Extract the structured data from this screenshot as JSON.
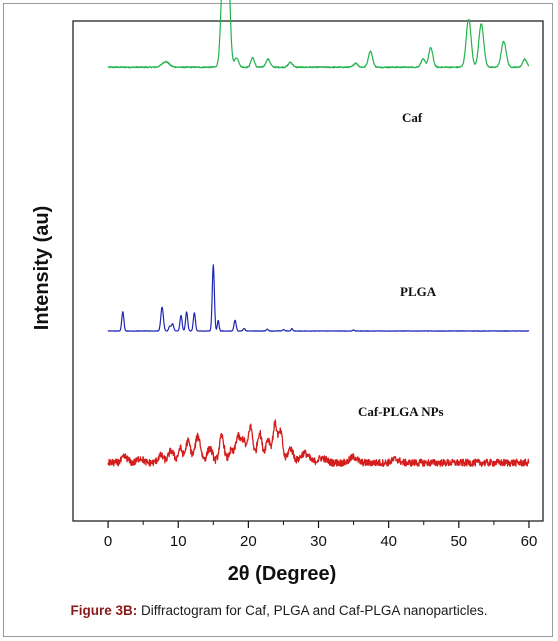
{
  "figure": {
    "caption_label": "Figure 3B:",
    "caption_text": " Diffractogram for Caf, PLGA and Caf-PLGA nanoparticles."
  },
  "colors": {
    "caf": "#22b24c",
    "plga": "#1f27b5",
    "caf_plga": "#d41e1e",
    "axis": "#111111"
  },
  "chart_data": {
    "type": "line",
    "xlabel": "2θ (Degree)",
    "ylabel": "Intensity (au)",
    "xlim": [
      -5,
      62
    ],
    "xticks": [
      "0",
      "10",
      "20",
      "30",
      "40",
      "50",
      "60"
    ],
    "yticks_shown": false,
    "grid": false,
    "series_labels_position": "right of each trace",
    "series": [
      {
        "name": "Caf",
        "baseline": 0.78,
        "noise": 0.004,
        "peaks": [
          [
            8.2,
            0.035,
            0.5
          ],
          [
            16.5,
            0.72,
            0.35
          ],
          [
            17.1,
            0.58,
            0.3
          ],
          [
            18.3,
            0.06,
            0.3
          ],
          [
            20.6,
            0.06,
            0.25
          ],
          [
            22.8,
            0.05,
            0.3
          ],
          [
            26,
            0.03,
            0.3
          ],
          [
            35.3,
            0.025,
            0.3
          ],
          [
            37.4,
            0.1,
            0.3
          ],
          [
            44.9,
            0.05,
            0.3
          ],
          [
            46,
            0.12,
            0.3
          ],
          [
            51.4,
            0.3,
            0.35
          ],
          [
            53.2,
            0.27,
            0.35
          ],
          [
            56.4,
            0.16,
            0.35
          ],
          [
            59.4,
            0.05,
            0.3
          ]
        ]
      },
      {
        "name": "PLGA",
        "baseline": 0.0,
        "noise": 0.002,
        "peaks": [
          [
            2.1,
            0.16,
            0.15
          ],
          [
            7.7,
            0.2,
            0.18
          ],
          [
            8.8,
            0.04,
            0.15
          ],
          [
            9.2,
            0.06,
            0.15
          ],
          [
            10.4,
            0.13,
            0.15
          ],
          [
            11.2,
            0.16,
            0.15
          ],
          [
            12.3,
            0.15,
            0.15
          ],
          [
            15,
            0.55,
            0.15
          ],
          [
            15.7,
            0.09,
            0.12
          ],
          [
            18.1,
            0.09,
            0.15
          ],
          [
            19.4,
            0.02,
            0.15
          ],
          [
            22.7,
            0.015,
            0.15
          ],
          [
            25,
            0.012,
            0.15
          ],
          [
            26.2,
            0.02,
            0.12
          ],
          [
            35,
            0.01,
            0.12
          ]
        ]
      },
      {
        "name": "Caf-PLGA NPs",
        "baseline": 0.06,
        "noise": 0.03,
        "peaks": [
          [
            2.4,
            0.05,
            0.4
          ],
          [
            4.6,
            0.04,
            0.4
          ],
          [
            7.5,
            0.06,
            0.4
          ],
          [
            9,
            0.1,
            0.4
          ],
          [
            10.3,
            0.12,
            0.3
          ],
          [
            11.4,
            0.18,
            0.35
          ],
          [
            12.8,
            0.22,
            0.4
          ],
          [
            14.5,
            0.12,
            0.4
          ],
          [
            16.2,
            0.22,
            0.35
          ],
          [
            17.5,
            0.1,
            0.3
          ],
          [
            18.5,
            0.22,
            0.35
          ],
          [
            19.3,
            0.18,
            0.3
          ],
          [
            20.3,
            0.3,
            0.35
          ],
          [
            21.6,
            0.25,
            0.35
          ],
          [
            22.8,
            0.2,
            0.35
          ],
          [
            23.8,
            0.32,
            0.3
          ],
          [
            24.6,
            0.25,
            0.3
          ],
          [
            26,
            0.12,
            0.4
          ],
          [
            28,
            0.08,
            0.6
          ],
          [
            30.5,
            0.04,
            0.6
          ],
          [
            35,
            0.05,
            0.5
          ],
          [
            41,
            0.03,
            0.5
          ]
        ]
      }
    ]
  }
}
